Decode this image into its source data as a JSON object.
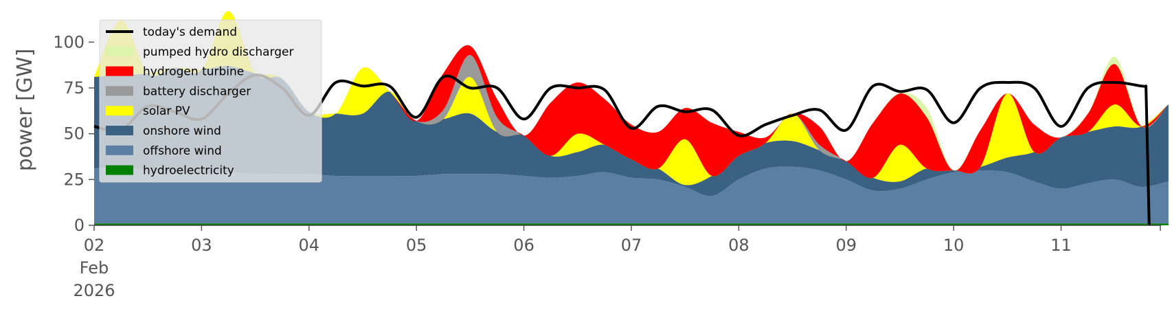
{
  "chart_data": {
    "type": "area",
    "ylabel": "power [GW]",
    "xlabel": "",
    "ylim": [
      0,
      120
    ],
    "xlim": [
      0,
      10
    ],
    "grid": false,
    "legend_position": "top-left",
    "yticks": [
      0,
      25,
      50,
      75,
      100
    ],
    "xticks": [
      {
        "x": 0,
        "label": "02",
        "sub": [
          "Feb",
          "2026"
        ]
      },
      {
        "x": 1,
        "label": "03",
        "sub": []
      },
      {
        "x": 2,
        "label": "04",
        "sub": []
      },
      {
        "x": 3,
        "label": "05",
        "sub": []
      },
      {
        "x": 4,
        "label": "06",
        "sub": []
      },
      {
        "x": 5,
        "label": "07",
        "sub": []
      },
      {
        "x": 6,
        "label": "08",
        "sub": []
      },
      {
        "x": 7,
        "label": "09",
        "sub": []
      },
      {
        "x": 8,
        "label": "10",
        "sub": []
      },
      {
        "x": 9,
        "label": "11",
        "sub": []
      }
    ],
    "x": [
      0,
      0.25,
      0.5,
      0.75,
      1,
      1.25,
      1.5,
      1.75,
      2,
      2.25,
      2.5,
      2.75,
      3,
      3.25,
      3.5,
      3.75,
      4,
      4.25,
      4.5,
      4.75,
      5,
      5.25,
      5.5,
      5.75,
      6,
      6.25,
      6.5,
      6.75,
      7,
      7.25,
      7.5,
      7.75,
      8,
      8.25,
      8.5,
      8.75,
      9,
      9.25,
      9.5,
      9.75,
      10
    ],
    "series": [
      {
        "name": "hydroelectricity",
        "color": "#008000",
        "values": [
          1,
          1,
          1,
          1,
          1,
          1,
          1,
          1,
          1,
          1,
          1,
          1,
          1,
          1,
          1,
          1,
          1,
          1,
          1,
          1,
          1,
          1,
          1,
          1,
          1,
          1,
          1,
          1,
          1,
          1,
          1,
          1,
          1,
          1,
          1,
          1,
          1,
          1,
          1,
          1,
          1
        ]
      },
      {
        "name": "offshore wind",
        "color": "#5b7fa3",
        "values": [
          30,
          31,
          29,
          28,
          27,
          28,
          27,
          27,
          27,
          26,
          26,
          26,
          26,
          27,
          27,
          27,
          26,
          25,
          26,
          28,
          25,
          24,
          20,
          15,
          24,
          30,
          31,
          29,
          24,
          18,
          19,
          24,
          28,
          29,
          28,
          23,
          19,
          22,
          24,
          20,
          23
        ]
      },
      {
        "name": "onshore wind",
        "color": "#3b6182",
        "values": [
          50,
          50,
          53,
          57,
          57,
          58,
          55,
          52,
          34,
          34,
          34,
          46,
          30,
          30,
          33,
          23,
          22,
          12,
          13,
          15,
          10,
          6,
          1,
          11,
          13,
          14,
          14,
          11,
          10,
          7,
          4,
          6,
          1,
          2,
          8,
          16,
          28,
          28,
          29,
          33,
          42
        ]
      },
      {
        "name": "solar PV",
        "color": "#ffff00",
        "values": [
          0,
          30,
          0,
          0,
          0,
          30,
          0,
          0,
          0,
          0,
          25,
          0,
          0,
          0,
          20,
          0,
          0,
          0,
          10,
          0,
          0,
          0,
          25,
          0,
          0,
          0,
          15,
          0,
          0,
          0,
          20,
          0,
          0,
          0,
          35,
          0,
          0,
          0,
          12,
          0,
          0
        ]
      },
      {
        "name": "battery discharger",
        "color": "#999999",
        "values": [
          0,
          0,
          0,
          0,
          0,
          0,
          0,
          0,
          0,
          0,
          0,
          0,
          0,
          5,
          12,
          8,
          0,
          0,
          0,
          0,
          0,
          0,
          0,
          0,
          0,
          0,
          0,
          3,
          0,
          0,
          0,
          0,
          0,
          0,
          0,
          0,
          0,
          0,
          0,
          0,
          0
        ]
      },
      {
        "name": "hydrogen turbine",
        "color": "#ff0000",
        "values": [
          0,
          0,
          0,
          0,
          0,
          0,
          0,
          0,
          0,
          0,
          0,
          0,
          0,
          20,
          5,
          10,
          0,
          29,
          28,
          25,
          19,
          20,
          17,
          29,
          13,
          3,
          0,
          10,
          0,
          30,
          28,
          28,
          0,
          20,
          0,
          15,
          0,
          10,
          22,
          0,
          0
        ]
      },
      {
        "name": "pumped hydro discharger",
        "color": "#dcf5aa",
        "values": [
          0,
          0,
          0,
          0,
          0,
          0,
          0,
          0,
          0,
          0,
          0,
          0,
          0,
          0,
          0,
          0,
          0,
          0,
          0,
          0,
          0,
          0,
          0,
          0,
          0,
          0,
          0,
          0,
          0,
          0,
          0,
          5,
          0,
          0,
          0,
          0,
          0,
          0,
          4,
          0,
          0
        ]
      }
    ],
    "demand": {
      "name": "today's demand",
      "color": "#000000",
      "x": [
        0,
        0.25,
        0.5,
        0.75,
        1,
        1.25,
        1.5,
        1.75,
        2,
        2.25,
        2.5,
        2.75,
        3,
        3.25,
        3.5,
        3.75,
        4,
        4.25,
        4.5,
        4.75,
        5,
        5.25,
        5.5,
        5.75,
        6,
        6.25,
        6.5,
        6.75,
        7,
        7.25,
        7.5,
        7.75,
        8,
        8.25,
        8.5,
        8.75,
        9,
        9.25,
        9.5,
        9.75,
        9.79,
        9.82
      ],
      "values": [
        54,
        52,
        65,
        62,
        58,
        72,
        82,
        75,
        60,
        78,
        76,
        76,
        59,
        81,
        75,
        75,
        58,
        75,
        75,
        74,
        53,
        65,
        62,
        63,
        49,
        55,
        60,
        63,
        52,
        76,
        73,
        74,
        56,
        75,
        78,
        75,
        54,
        75,
        78,
        76,
        76,
        0
      ]
    },
    "legend": [
      {
        "label": "today's demand",
        "type": "line",
        "color": "#000000"
      },
      {
        "label": "pumped hydro discharger",
        "type": "patch",
        "color": "#dcf5aa"
      },
      {
        "label": "hydrogen turbine",
        "type": "patch",
        "color": "#ff0000"
      },
      {
        "label": "battery discharger",
        "type": "patch",
        "color": "#999999"
      },
      {
        "label": "solar PV",
        "type": "patch",
        "color": "#ffff00"
      },
      {
        "label": "onshore wind",
        "type": "patch",
        "color": "#3b6182"
      },
      {
        "label": "offshore wind",
        "type": "patch",
        "color": "#5b7fa3"
      },
      {
        "label": "hydroelectricity",
        "type": "patch",
        "color": "#008000"
      }
    ]
  }
}
